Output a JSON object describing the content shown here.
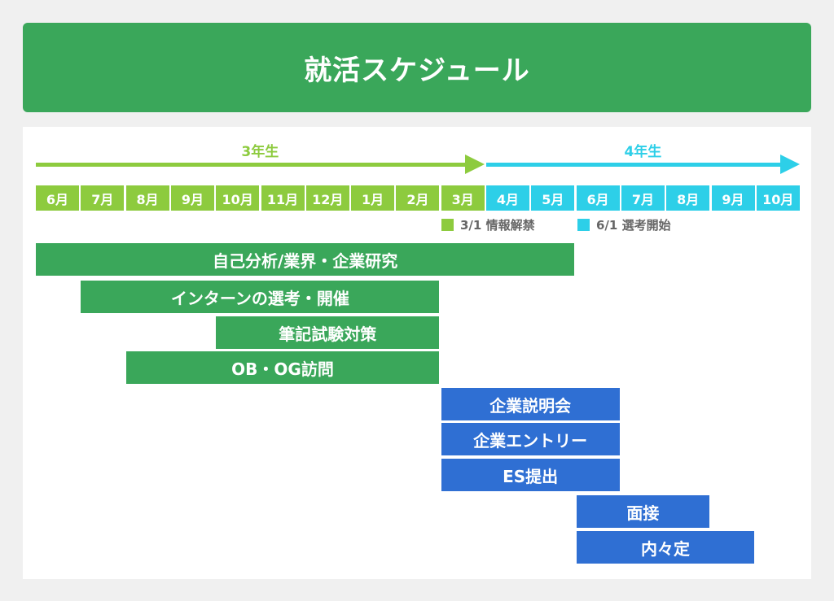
{
  "title": "就活スケジュール",
  "phases": [
    {
      "label": "3年生",
      "color": "#8dcb3e",
      "from": 0,
      "to": 10
    },
    {
      "label": "4年生",
      "color": "#2dcfe8",
      "from": 10,
      "to": 17
    }
  ],
  "months": [
    {
      "label": "6月",
      "phase": 0
    },
    {
      "label": "7月",
      "phase": 0
    },
    {
      "label": "8月",
      "phase": 0
    },
    {
      "label": "9月",
      "phase": 0
    },
    {
      "label": "10月",
      "phase": 0
    },
    {
      "label": "11月",
      "phase": 0
    },
    {
      "label": "12月",
      "phase": 0
    },
    {
      "label": "1月",
      "phase": 0
    },
    {
      "label": "2月",
      "phase": 0
    },
    {
      "label": "3月",
      "phase": 0
    },
    {
      "label": "4月",
      "phase": 1
    },
    {
      "label": "5月",
      "phase": 1
    },
    {
      "label": "6月",
      "phase": 1
    },
    {
      "label": "7月",
      "phase": 1
    },
    {
      "label": "8月",
      "phase": 1
    },
    {
      "label": "9月",
      "phase": 1
    },
    {
      "label": "10月",
      "phase": 1
    }
  ],
  "legend": [
    {
      "label": "3/1 情報解禁",
      "color": "#8dcb3e"
    },
    {
      "label": "6/1 選考開始",
      "color": "#2dcfe8"
    }
  ],
  "colors": {
    "task_green": "#3aa75a",
    "task_blue": "#2f6fd3"
  },
  "tasks": [
    {
      "label": "自己分析/業界・企業研究",
      "start": 0,
      "end": 12,
      "color": "#3aa75a"
    },
    {
      "label": "インターンの選考・開催",
      "start": 1,
      "end": 9,
      "color": "#3aa75a"
    },
    {
      "label": "筆記試験対策",
      "start": 4,
      "end": 9,
      "color": "#3aa75a"
    },
    {
      "label": "OB・OG訪問",
      "start": 2,
      "end": 9,
      "color": "#3aa75a"
    },
    {
      "label": "企業説明会",
      "start": 9,
      "end": 13,
      "color": "#2f6fd3"
    },
    {
      "label": "企業エントリー",
      "start": 9,
      "end": 13,
      "color": "#2f6fd3"
    },
    {
      "label": "ES提出",
      "start": 9,
      "end": 13,
      "color": "#2f6fd3"
    },
    {
      "label": "面接",
      "start": 12,
      "end": 15,
      "color": "#2f6fd3"
    },
    {
      "label": "内々定",
      "start": 12,
      "end": 16,
      "color": "#2f6fd3"
    }
  ]
}
